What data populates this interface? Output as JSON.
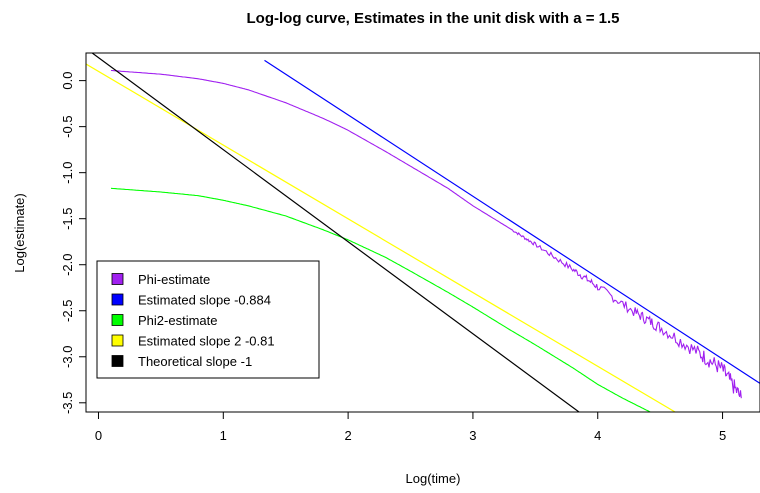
{
  "chart_data": {
    "type": "line",
    "title": "Log-log curve, Estimates in the unit disk with a = 1.5",
    "xlabel": "Log(time)",
    "ylabel": "Log(estimate)",
    "xlim": [
      -0.1,
      5.3
    ],
    "ylim": [
      -3.6,
      0.3
    ],
    "x_ticks": [
      0,
      1,
      2,
      3,
      4,
      5
    ],
    "y_ticks": [
      0.0,
      -0.5,
      -1.0,
      -1.5,
      -2.0,
      -2.5,
      -3.0,
      -3.5
    ],
    "x_tick_labels": [
      "0",
      "1",
      "2",
      "3",
      "4",
      "5"
    ],
    "y_tick_labels": [
      "0.0",
      "-0.5",
      "-1.0",
      "-1.5",
      "-2.0",
      "-2.5",
      "-3.0",
      "-3.5"
    ],
    "legend_position": "bottom-left",
    "series": [
      {
        "name": "Phi-estimate",
        "color": "#a020f0",
        "kind": "curve",
        "noisy_from_x": 3.3,
        "x": [
          0.1,
          0.5,
          0.8,
          1.0,
          1.2,
          1.5,
          1.8,
          2.0,
          2.3,
          2.5,
          2.8,
          3.0,
          3.3,
          3.5,
          3.8,
          4.0,
          4.3,
          4.5,
          4.8,
          5.0,
          5.15
        ],
        "y": [
          0.11,
          0.07,
          0.02,
          -0.03,
          -0.1,
          -0.24,
          -0.41,
          -0.54,
          -0.77,
          -0.93,
          -1.17,
          -1.36,
          -1.61,
          -1.78,
          -2.05,
          -2.24,
          -2.52,
          -2.68,
          -2.95,
          -3.14,
          -3.45
        ]
      },
      {
        "name": "Estimated slope  -0.884",
        "color": "#0000ff",
        "kind": "line",
        "x": [
          1.33,
          5.3
        ],
        "y": [
          0.22,
          -3.289
        ]
      },
      {
        "name": "Phi2-estimate",
        "color": "#00ff00",
        "kind": "curve",
        "x": [
          0.1,
          0.5,
          0.8,
          1.0,
          1.2,
          1.5,
          1.8,
          2.0,
          2.3,
          2.5,
          2.8,
          3.0,
          3.3,
          3.5,
          3.8,
          4.0,
          4.2,
          4.42
        ],
        "y": [
          -1.17,
          -1.21,
          -1.25,
          -1.3,
          -1.36,
          -1.47,
          -1.62,
          -1.73,
          -1.92,
          -2.07,
          -2.3,
          -2.46,
          -2.71,
          -2.87,
          -3.12,
          -3.3,
          -3.45,
          -3.6
        ]
      },
      {
        "name": "Estimated slope 2 -0.81",
        "color": "#ffff00",
        "kind": "line",
        "x": [
          -0.1,
          4.62
        ],
        "y": [
          0.18,
          -3.6
        ]
      },
      {
        "name": "Theoretical slope -1",
        "color": "#000000",
        "kind": "line",
        "x": [
          -0.05,
          3.85
        ],
        "y": [
          0.3,
          -3.6
        ]
      }
    ]
  }
}
